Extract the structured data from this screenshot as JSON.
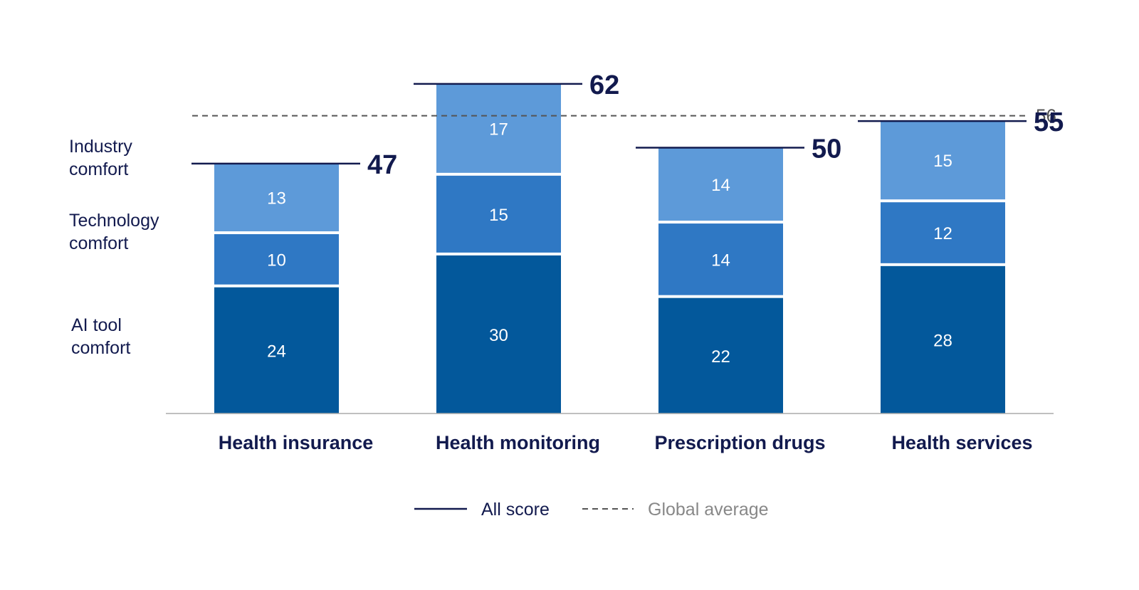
{
  "chart_data": {
    "type": "bar",
    "stacked": true,
    "categories": [
      "Health insurance",
      "Health monitoring",
      "Prescription drugs",
      "Health services"
    ],
    "series": [
      {
        "name": "AI tool comfort",
        "label_lines": [
          "AI tool",
          "comfort"
        ],
        "color": "#03589b",
        "values": [
          24,
          30,
          22,
          28
        ]
      },
      {
        "name": "Technology comfort",
        "label_lines": [
          "Technology",
          "comfort"
        ],
        "color": "#2f78c4",
        "values": [
          10,
          15,
          14,
          12
        ]
      },
      {
        "name": "Industry comfort",
        "label_lines": [
          "Industry",
          "comfort"
        ],
        "color": "#5d9ad9",
        "values": [
          13,
          17,
          14,
          15
        ]
      }
    ],
    "totals": [
      47,
      62,
      50,
      55
    ],
    "global_average": 56,
    "ylim": [
      0,
      70
    ],
    "title": "",
    "xlabel": "",
    "ylabel": "",
    "grid": false
  },
  "legend": {
    "all_score": "All score",
    "global_average": "Global average"
  },
  "colors": {
    "navy": "#121a4e",
    "avg_line": "#555555",
    "axis": "#aaaaaa"
  }
}
